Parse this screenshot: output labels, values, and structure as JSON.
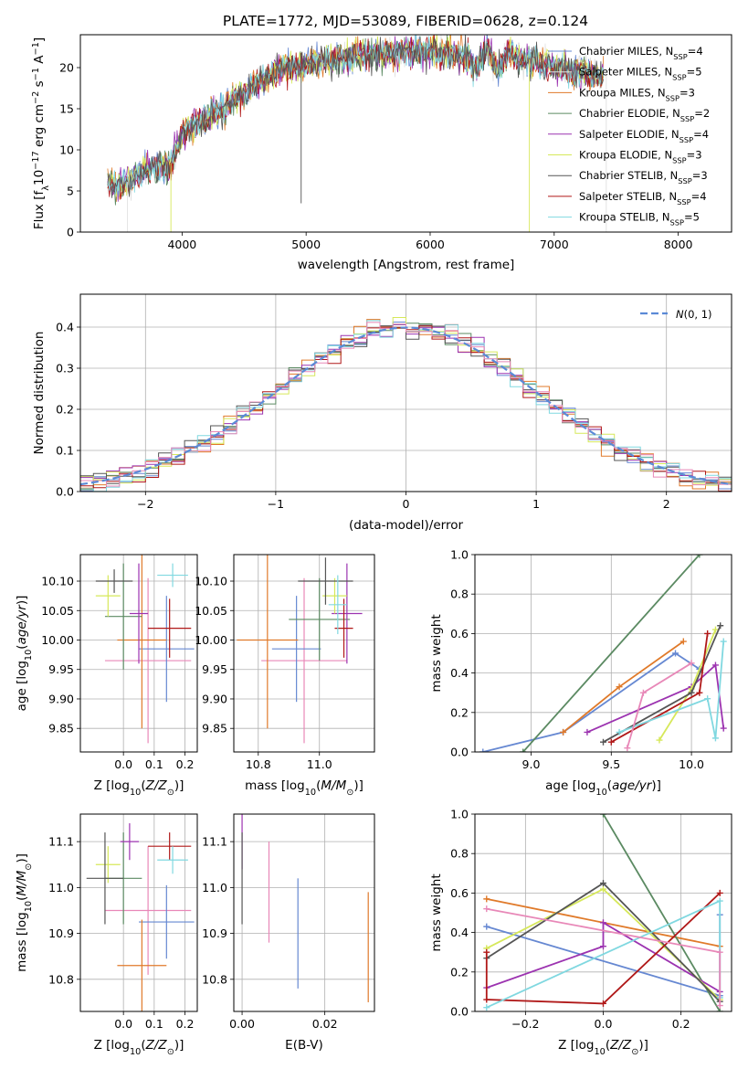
{
  "chart_data": [
    {
      "id": "spectrum",
      "type": "line",
      "title": "PLATE=1772, MJD=53089, FIBERID=0628, z=0.124",
      "xlabel": "wavelength [Angstrom, rest frame]",
      "ylabel": "Flux [f_λ 10^-17 erg cm^-2 s^-1 A^-1]",
      "xlim": [
        3180,
        8430
      ],
      "ylim": [
        0,
        24
      ],
      "xticks": [
        4000,
        5000,
        6000,
        7000,
        8000
      ],
      "yticks": [
        0,
        5,
        10,
        15,
        20
      ],
      "grid": false,
      "legend_position": "right",
      "continuum": {
        "x": [
          3400,
          3500,
          3600,
          3700,
          3800,
          3900,
          4000,
          4100,
          4200,
          4300,
          4400,
          4500,
          4600,
          4700,
          4800,
          4900,
          5000,
          5200,
          5400,
          5600,
          5800,
          6000,
          6200,
          6400,
          6600,
          6800,
          7000,
          7200,
          7400
        ],
        "y": [
          6,
          5.5,
          6.5,
          7.5,
          8,
          8,
          12,
          13,
          14,
          14.5,
          16,
          17,
          18,
          19,
          20,
          20,
          20.5,
          21,
          21.5,
          21.5,
          22,
          22,
          21.5,
          21,
          21,
          21,
          20,
          19.5,
          19
        ]
      },
      "dropouts": [
        {
          "series": "Chabrier STELIB",
          "x": 4960,
          "y": 3.5
        },
        {
          "series": "Salpeter MILES",
          "x": 3560,
          "y": 0
        },
        {
          "series": "Kroupa ELODIE",
          "x": 3910,
          "y": 0
        },
        {
          "series": "Kroupa ELODIE",
          "x": 6800,
          "y": 0
        },
        {
          "series": "Salpeter MILES",
          "x": 7420,
          "y": 0
        }
      ],
      "series": [
        {
          "name": "Chabrier MILES, N_SSP=4",
          "label_main": "Chabrier MILES, N",
          "label_sub": "SSP",
          "label_end": "=4",
          "color": "#6688d2"
        },
        {
          "name": "Salpeter MILES, N_SSP=5",
          "label_main": "Salpeter MILES, N",
          "label_sub": "SSP",
          "label_end": "=5",
          "color": "#e0e0e0"
        },
        {
          "name": "Kroupa MILES, N_SSP=3",
          "label_main": "Kroupa MILES, N",
          "label_sub": "SSP",
          "label_end": "=3",
          "color": "#e07a2a"
        },
        {
          "name": "Chabrier ELODIE, N_SSP=2",
          "label_main": "Chabrier ELODIE, N",
          "label_sub": "SSP",
          "label_end": "=2",
          "color": "#5b8a62"
        },
        {
          "name": "Salpeter ELODIE, N_SSP=4",
          "label_main": "Salpeter ELODIE, N",
          "label_sub": "SSP",
          "label_end": "=4",
          "color": "#9c33b0"
        },
        {
          "name": "Kroupa ELODIE, N_SSP=3",
          "label_main": "Kroupa ELODIE, N",
          "label_sub": "SSP",
          "label_end": "=3",
          "color": "#d6e85a"
        },
        {
          "name": "Chabrier STELIB, N_SSP=3",
          "label_main": "Chabrier STELIB, N",
          "label_sub": "SSP",
          "label_end": "=3",
          "color": "#555555"
        },
        {
          "name": "Salpeter STELIB, N_SSP=4",
          "label_main": "Salpeter STELIB, N",
          "label_sub": "SSP",
          "label_end": "=4",
          "color": "#b01818"
        },
        {
          "name": "Kroupa STELIB, N_SSP=5",
          "label_main": "Kroupa STELIB, N",
          "label_sub": "SSP",
          "label_end": "=5",
          "color": "#80d8e0"
        }
      ]
    },
    {
      "id": "residuals",
      "type": "line",
      "title": "",
      "xlabel": "(data-model)/error",
      "ylabel": "Normed distribution",
      "xlim": [
        -2.5,
        2.5
      ],
      "ylim": [
        0,
        0.48
      ],
      "xticks": [
        -2,
        -1,
        0,
        1,
        2
      ],
      "yticks": [
        0.0,
        0.1,
        0.2,
        0.3,
        0.4
      ],
      "grid": true,
      "legend_position": "top-right",
      "gaussian_label": "N(0,1)",
      "gaussian_color": "#5b8ad6",
      "bin_width": 0.1,
      "bin_start": -2.5,
      "hist_colors": [
        "#6688d2",
        "#e07a2a",
        "#5b8a62",
        "#9c33b0",
        "#d6e85a",
        "#555555",
        "#b01818",
        "#80d8e0",
        "#e888b8"
      ]
    },
    {
      "id": "age_vs_Z",
      "type": "scatter",
      "title": "",
      "xlabel": "Z [log10(Z/Z⊙)]",
      "ylabel": "age [log10(age/yr)]",
      "xlim": [
        -0.14,
        0.24
      ],
      "ylim": [
        9.81,
        10.145
      ],
      "xticks": [
        0.0,
        0.1,
        0.2
      ],
      "yticks": [
        9.85,
        9.9,
        9.95,
        10.0,
        10.05,
        10.1
      ],
      "grid": true,
      "points": [
        {
          "x": 0.08,
          "y": 9.965,
          "xerr": 0.14,
          "yerr": 0.14,
          "color": "#e888b8"
        },
        {
          "x": 0.14,
          "y": 9.985,
          "xerr": 0.09,
          "yerr": 0.09,
          "color": "#6688d2"
        },
        {
          "x": 0.06,
          "y": 10.0,
          "xerr": 0.08,
          "yerr": 0.15,
          "color": "#e07a2a"
        },
        {
          "x": 0.0,
          "y": 10.04,
          "xerr": 0.06,
          "yerr": 0.09,
          "color": "#5b8a62"
        },
        {
          "x": 0.05,
          "y": 10.045,
          "xerr": 0.03,
          "yerr": 0.085,
          "color": "#9c33b0"
        },
        {
          "x": -0.05,
          "y": 10.075,
          "xerr": 0.04,
          "yerr": 0.035,
          "color": "#d6e85a"
        },
        {
          "x": -0.03,
          "y": 10.1,
          "xerr": 0.06,
          "yerr": 0.02,
          "color": "#555555"
        },
        {
          "x": 0.15,
          "y": 10.02,
          "xerr": 0.07,
          "yerr": 0.05,
          "color": "#b01818"
        },
        {
          "x": 0.16,
          "y": 10.11,
          "xerr": 0.05,
          "yerr": 0.02,
          "color": "#80d8e0"
        }
      ]
    },
    {
      "id": "age_vs_mass",
      "type": "scatter",
      "title": "",
      "xlabel": "mass [log10(M/M⊙)]",
      "ylabel": "",
      "xlim": [
        10.72,
        11.18
      ],
      "ylim": [
        9.81,
        10.145
      ],
      "xticks": [
        10.8,
        11.0
      ],
      "yticks": [
        9.85,
        9.9,
        9.95,
        10.0,
        10.05,
        10.1
      ],
      "grid": true,
      "points": [
        {
          "x": 10.95,
          "y": 9.965,
          "xerr": 0.14,
          "yerr": 0.14,
          "color": "#e888b8"
        },
        {
          "x": 10.925,
          "y": 9.985,
          "xerr": 0.08,
          "yerr": 0.09,
          "color": "#6688d2"
        },
        {
          "x": 10.83,
          "y": 10.0,
          "xerr": 0.1,
          "yerr": 0.15,
          "color": "#e07a2a"
        },
        {
          "x": 11.0,
          "y": 10.035,
          "xerr": 0.1,
          "yerr": 0.07,
          "color": "#5b8a62"
        },
        {
          "x": 11.09,
          "y": 10.045,
          "xerr": 0.05,
          "yerr": 0.085,
          "color": "#9c33b0"
        },
        {
          "x": 11.05,
          "y": 10.075,
          "xerr": 0.04,
          "yerr": 0.03,
          "color": "#d6e85a"
        },
        {
          "x": 11.02,
          "y": 10.1,
          "xerr": 0.09,
          "yerr": 0.04,
          "color": "#555555"
        },
        {
          "x": 11.08,
          "y": 10.02,
          "xerr": 0.03,
          "yerr": 0.05,
          "color": "#b01818"
        },
        {
          "x": 11.06,
          "y": 10.06,
          "xerr": 0.03,
          "yerr": 0.05,
          "color": "#80d8e0"
        }
      ]
    },
    {
      "id": "weight_vs_age",
      "type": "line",
      "title": "",
      "xlabel": "age [log10(age/yr)]",
      "ylabel": "mass weight",
      "xlim": [
        8.65,
        10.25
      ],
      "ylim": [
        0,
        1.0
      ],
      "xticks": [
        9.0,
        9.5,
        10.0
      ],
      "yticks": [
        0.0,
        0.2,
        0.4,
        0.6,
        0.8,
        1.0
      ],
      "grid": true,
      "series": [
        {
          "name": "Chabrier MILES",
          "color": "#6688d2",
          "points": [
            [
              8.7,
              0.0
            ],
            [
              9.2,
              0.1
            ],
            [
              9.9,
              0.5
            ],
            [
              10.05,
              0.42
            ]
          ]
        },
        {
          "name": "Kroupa MILES",
          "color": "#e07a2a",
          "points": [
            [
              9.2,
              0.1
            ],
            [
              9.55,
              0.33
            ],
            [
              9.95,
              0.56
            ]
          ]
        },
        {
          "name": "Chabrier ELODIE",
          "color": "#5b8a62",
          "points": [
            [
              8.95,
              0.0
            ],
            [
              10.05,
              1.0
            ]
          ]
        },
        {
          "name": "Salpeter ELODIE",
          "color": "#9c33b0",
          "points": [
            [
              9.35,
              0.1
            ],
            [
              10.0,
              0.33
            ],
            [
              10.15,
              0.44
            ],
            [
              10.2,
              0.12
            ]
          ]
        },
        {
          "name": "Kroupa ELODIE",
          "color": "#d6e85a",
          "points": [
            [
              9.8,
              0.06
            ],
            [
              10.0,
              0.32
            ],
            [
              10.15,
              0.62
            ]
          ]
        },
        {
          "name": "Chabrier STELIB",
          "color": "#555555",
          "points": [
            [
              9.45,
              0.05
            ],
            [
              10.0,
              0.3
            ],
            [
              10.18,
              0.64
            ]
          ]
        },
        {
          "name": "Salpeter STELIB",
          "color": "#b01818",
          "points": [
            [
              9.5,
              0.05
            ],
            [
              10.05,
              0.3
            ],
            [
              10.1,
              0.6
            ]
          ]
        },
        {
          "name": "Kroupa STELIB",
          "color": "#80d8e0",
          "points": [
            [
              9.55,
              0.1
            ],
            [
              10.1,
              0.27
            ],
            [
              10.15,
              0.07
            ],
            [
              10.2,
              0.56
            ]
          ]
        },
        {
          "name": "Salpeter MILES",
          "color": "#e888b8",
          "points": [
            [
              9.6,
              0.02
            ],
            [
              9.7,
              0.3
            ],
            [
              10.0,
              0.45
            ]
          ]
        }
      ]
    },
    {
      "id": "mass_vs_Z",
      "type": "scatter",
      "title": "",
      "xlabel": "Z [log10(Z/Z⊙)]",
      "ylabel": "mass [log10(M/M⊙)]",
      "xlim": [
        -0.14,
        0.24
      ],
      "ylim": [
        10.73,
        11.16
      ],
      "xticks": [
        0.0,
        0.1,
        0.2
      ],
      "yticks": [
        10.8,
        10.9,
        11.0,
        11.1
      ],
      "grid": true,
      "points": [
        {
          "x": 0.08,
          "y": 10.95,
          "xerr": 0.14,
          "yerr": 0.14,
          "color": "#e888b8"
        },
        {
          "x": 0.14,
          "y": 10.925,
          "xerr": 0.09,
          "yerr": 0.08,
          "color": "#6688d2"
        },
        {
          "x": 0.06,
          "y": 10.83,
          "xerr": 0.08,
          "yerr": 0.1,
          "color": "#e07a2a"
        },
        {
          "x": 0.0,
          "y": 11.02,
          "xerr": 0.06,
          "yerr": 0.1,
          "color": "#5b8a62"
        },
        {
          "x": 0.02,
          "y": 11.1,
          "xerr": 0.03,
          "yerr": 0.04,
          "color": "#9c33b0"
        },
        {
          "x": -0.05,
          "y": 11.05,
          "xerr": 0.04,
          "yerr": 0.04,
          "color": "#d6e85a"
        },
        {
          "x": -0.06,
          "y": 11.02,
          "xerr": 0.06,
          "yerr": 0.1,
          "color": "#555555"
        },
        {
          "x": 0.15,
          "y": 11.09,
          "xerr": 0.07,
          "yerr": 0.03,
          "color": "#b01818"
        },
        {
          "x": 0.16,
          "y": 11.06,
          "xerr": 0.05,
          "yerr": 0.03,
          "color": "#80d8e0"
        }
      ]
    },
    {
      "id": "mass_vs_ebv",
      "type": "scatter",
      "title": "",
      "xlabel": "E(B-V)",
      "ylabel": "",
      "xlim": [
        -0.002,
        0.032
      ],
      "ylim": [
        10.73,
        11.16
      ],
      "xticks": [
        0.0,
        0.02
      ],
      "yticks": [
        10.8,
        10.9,
        11.0,
        11.1
      ],
      "grid": true,
      "points": [
        {
          "x": 0.0,
          "y": 11.1,
          "xerr": 0,
          "yerr": 0.06,
          "color": "#9c33b0"
        },
        {
          "x": 0.0,
          "y": 11.02,
          "xerr": 0,
          "yerr": 0.1,
          "color": "#555555"
        },
        {
          "x": 0.0065,
          "y": 10.99,
          "xerr": 0,
          "yerr": 0.11,
          "color": "#e888b8"
        },
        {
          "x": 0.0135,
          "y": 10.9,
          "xerr": 0,
          "yerr": 0.12,
          "color": "#6688d2"
        },
        {
          "x": 0.0305,
          "y": 10.87,
          "xerr": 0,
          "yerr": 0.12,
          "color": "#e07a2a"
        }
      ]
    },
    {
      "id": "weight_vs_Z",
      "type": "line",
      "title": "",
      "xlabel": "Z [log10(Z/Z⊙)]",
      "ylabel": "mass weight",
      "xlim": [
        -0.33,
        0.33
      ],
      "ylim": [
        0,
        1.0
      ],
      "xticks": [
        -0.2,
        0.0,
        0.2
      ],
      "yticks": [
        0.0,
        0.2,
        0.4,
        0.6,
        0.8,
        1.0
      ],
      "grid": true,
      "series": [
        {
          "name": "Chabrier MILES",
          "color": "#6688d2",
          "points": [
            [
              -0.3,
              0.43
            ],
            [
              0.3,
              0.08
            ],
            [
              0.3,
              0.49
            ]
          ]
        },
        {
          "name": "Kroupa MILES",
          "color": "#e07a2a",
          "points": [
            [
              -0.3,
              0.57
            ],
            [
              0.3,
              0.33
            ]
          ]
        },
        {
          "name": "Chabrier ELODIE",
          "color": "#5b8a62",
          "points": [
            [
              0.0,
              1.0
            ],
            [
              0.3,
              0.0
            ]
          ]
        },
        {
          "name": "Salpeter ELODIE",
          "color": "#9c33b0",
          "points": [
            [
              -0.3,
              0.12
            ],
            [
              0.0,
              0.33
            ],
            [
              0.0,
              0.45
            ],
            [
              0.3,
              0.1
            ]
          ]
        },
        {
          "name": "Kroupa ELODIE",
          "color": "#d6e85a",
          "points": [
            [
              -0.3,
              0.32
            ],
            [
              0.0,
              0.62
            ],
            [
              0.3,
              0.06
            ]
          ]
        },
        {
          "name": "Chabrier STELIB",
          "color": "#555555",
          "points": [
            [
              -0.3,
              0.27
            ],
            [
              0.0,
              0.65
            ],
            [
              0.3,
              0.05
            ]
          ]
        },
        {
          "name": "Salpeter STELIB",
          "color": "#b01818",
          "points": [
            [
              -0.3,
              0.3
            ],
            [
              -0.3,
              0.06
            ],
            [
              0.0,
              0.04
            ],
            [
              0.3,
              0.6
            ]
          ]
        },
        {
          "name": "Kroupa STELIB",
          "color": "#80d8e0",
          "points": [
            [
              -0.3,
              0.02
            ],
            [
              0.3,
              0.56
            ],
            [
              0.3,
              0.07
            ]
          ]
        },
        {
          "name": "Salpeter MILES",
          "color": "#e888b8",
          "points": [
            [
              -0.3,
              0.52
            ],
            [
              0.3,
              0.3
            ],
            [
              0.3,
              0.03
            ]
          ]
        }
      ]
    }
  ]
}
